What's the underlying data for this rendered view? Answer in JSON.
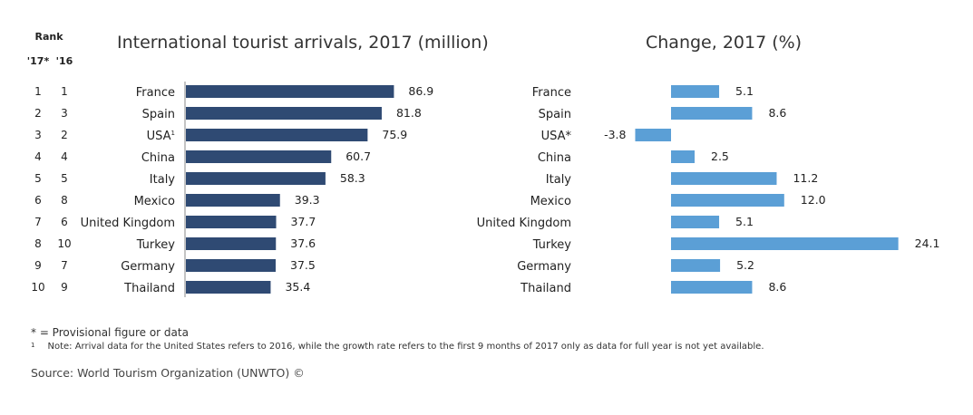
{
  "rank_header": {
    "title": "Rank",
    "col17": "'17*",
    "col16": "'16"
  },
  "colors": {
    "arrivals": "#2f4a73",
    "change": "#5b9fd6"
  },
  "chart_data": [
    {
      "type": "bar",
      "orientation": "horizontal",
      "title": "International tourist arrivals, 2017 (million)",
      "categories": [
        "France",
        "Spain",
        "USA",
        "China",
        "Italy",
        "Mexico",
        "United Kingdom",
        "Turkey",
        "Germany",
        "Thailand"
      ],
      "category_markers": [
        "",
        "",
        "1",
        "",
        "",
        "",
        "",
        "",
        "",
        ""
      ],
      "values": [
        86.9,
        81.8,
        75.9,
        60.7,
        58.3,
        39.3,
        37.7,
        37.6,
        37.5,
        35.4
      ],
      "value_labels": [
        "86.9",
        "81.8",
        "75.9",
        "60.7",
        "58.3",
        "39.3",
        "37.7",
        "37.6",
        "37.5",
        "35.4"
      ],
      "rank_2017": [
        "1",
        "2",
        "3",
        "4",
        "5",
        "6",
        "7",
        "8",
        "9",
        "10"
      ],
      "rank_2016": [
        "1",
        "3",
        "2",
        "4",
        "5",
        "8",
        "6",
        "10",
        "7",
        "9"
      ],
      "xlim": [
        0,
        100
      ],
      "grid": false,
      "legend": "none"
    },
    {
      "type": "bar",
      "orientation": "horizontal",
      "title": "Change, 2017 (%)",
      "categories": [
        "France",
        "Spain",
        "USA*",
        "China",
        "Italy",
        "Mexico",
        "United Kingdom",
        "Turkey",
        "Germany",
        "Thailand"
      ],
      "values": [
        5.1,
        8.6,
        -3.8,
        2.5,
        11.2,
        12.0,
        5.1,
        24.1,
        5.2,
        8.6
      ],
      "value_labels": [
        "5.1",
        "8.6",
        "-3.8",
        "2.5",
        "11.2",
        "12.0",
        "5.1",
        "24.1",
        "5.2",
        "8.6"
      ],
      "xlim": [
        -4,
        25
      ],
      "grid": false,
      "legend": "none"
    }
  ],
  "footnotes": {
    "provisional": "* = Provisional figure or data",
    "note_marker": "1",
    "note": "Note: Arrival data for the United States refers to 2016, while the growth rate refers to the first 9 months of 2017 only as data for full year is not yet available."
  },
  "source": "Source: World Tourism Organization (UNWTO) ©"
}
